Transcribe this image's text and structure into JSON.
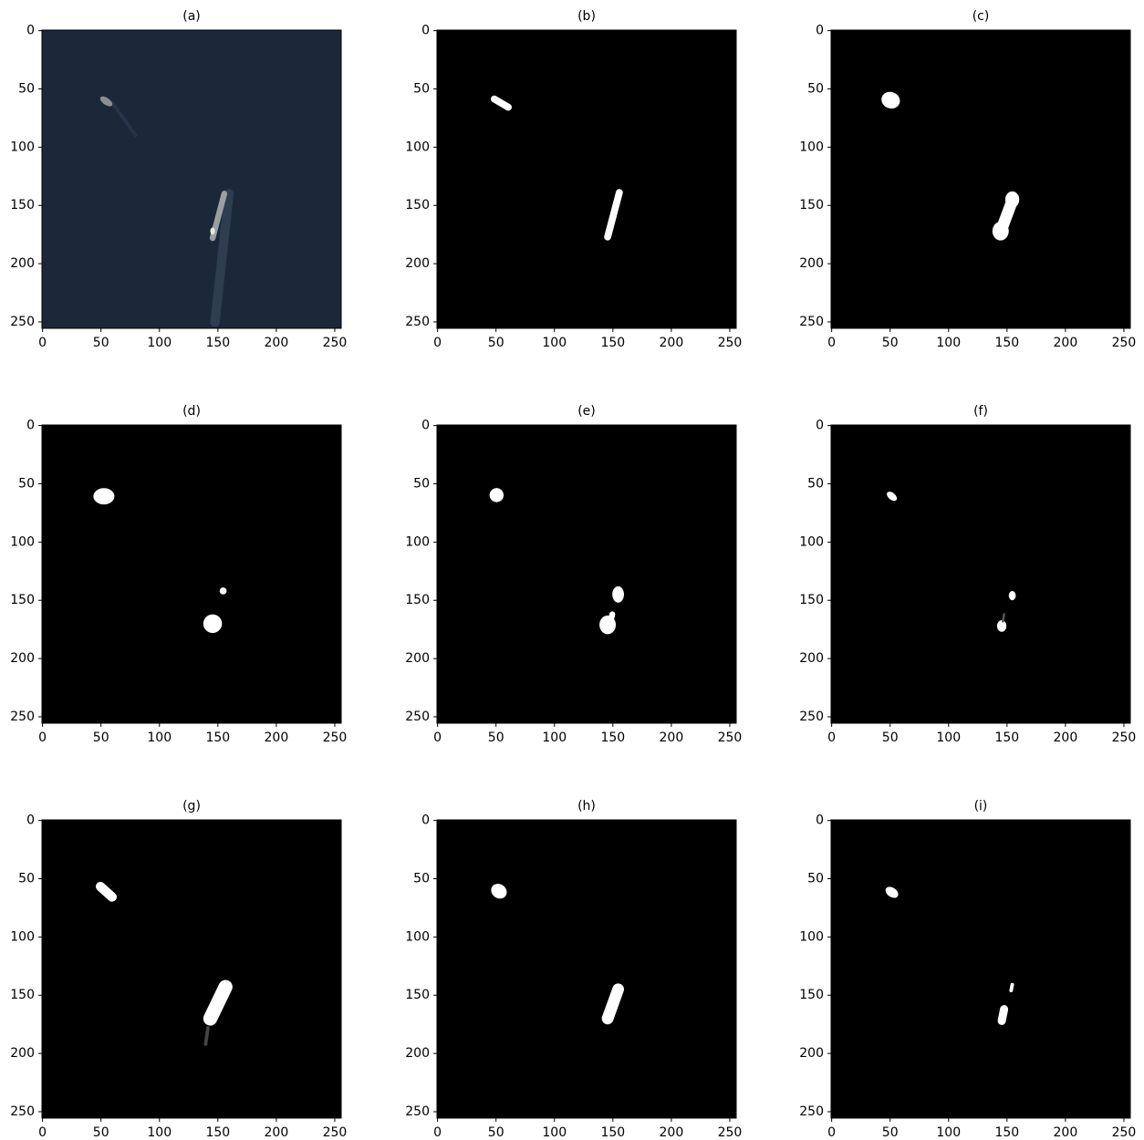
{
  "chart_data": [
    {
      "type": "image",
      "title": "(a)",
      "xlim": [
        -0.5,
        255.5
      ],
      "ylim": [
        255.5,
        -0.5
      ],
      "xticks": [
        0,
        50,
        100,
        150,
        200,
        250
      ],
      "yticks": [
        0,
        50,
        100,
        150,
        200,
        250
      ]
    },
    {
      "type": "image",
      "title": "(b)",
      "xlim": [
        -0.5,
        255.5
      ],
      "ylim": [
        255.5,
        -0.5
      ],
      "xticks": [
        0,
        50,
        100,
        150,
        200,
        250
      ],
      "yticks": [
        0,
        50,
        100,
        150,
        200,
        250
      ]
    },
    {
      "type": "image",
      "title": "(c)",
      "xlim": [
        -0.5,
        255.5
      ],
      "ylim": [
        255.5,
        -0.5
      ],
      "xticks": [
        0,
        50,
        100,
        150,
        200,
        250
      ],
      "yticks": [
        0,
        50,
        100,
        150,
        200,
        250
      ]
    },
    {
      "type": "image",
      "title": "(d)",
      "xlim": [
        -0.5,
        255.5
      ],
      "ylim": [
        255.5,
        -0.5
      ],
      "xticks": [
        0,
        50,
        100,
        150,
        200,
        250
      ],
      "yticks": [
        0,
        50,
        100,
        150,
        200,
        250
      ]
    },
    {
      "type": "image",
      "title": "(e)",
      "xlim": [
        -0.5,
        255.5
      ],
      "ylim": [
        255.5,
        -0.5
      ],
      "xticks": [
        0,
        50,
        100,
        150,
        200,
        250
      ],
      "yticks": [
        0,
        50,
        100,
        150,
        200,
        250
      ]
    },
    {
      "type": "image",
      "title": "(f)",
      "xlim": [
        -0.5,
        255.5
      ],
      "ylim": [
        255.5,
        -0.5
      ],
      "xticks": [
        0,
        50,
        100,
        150,
        200,
        250
      ],
      "yticks": [
        0,
        50,
        100,
        150,
        200,
        250
      ]
    },
    {
      "type": "image",
      "title": "(g)",
      "xlim": [
        -0.5,
        255.5
      ],
      "ylim": [
        255.5,
        -0.5
      ],
      "xticks": [
        0,
        50,
        100,
        150,
        200,
        250
      ],
      "yticks": [
        0,
        50,
        100,
        150,
        200,
        250
      ]
    },
    {
      "type": "image",
      "title": "(h)",
      "xlim": [
        -0.5,
        255.5
      ],
      "ylim": [
        255.5,
        -0.5
      ],
      "xticks": [
        0,
        50,
        100,
        150,
        200,
        250
      ],
      "yticks": [
        0,
        50,
        100,
        150,
        200,
        250
      ]
    },
    {
      "type": "image",
      "title": "(i)",
      "xlim": [
        -0.5,
        255.5
      ],
      "ylim": [
        255.5,
        -0.5
      ],
      "xticks": [
        0,
        50,
        100,
        150,
        200,
        250
      ],
      "yticks": [
        0,
        50,
        100,
        150,
        200,
        250
      ]
    }
  ]
}
